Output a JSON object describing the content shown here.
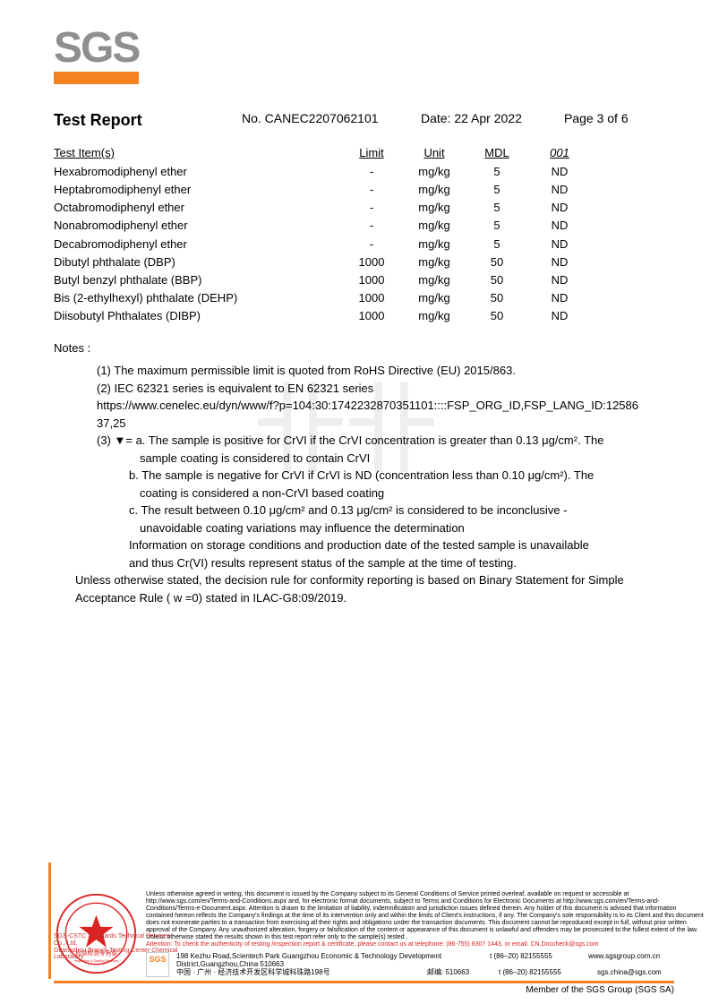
{
  "logo": "SGS",
  "header": {
    "title": "Test Report",
    "report_no": "No. CANEC2207062101",
    "date": "Date: 22 Apr 2022",
    "page": "Page 3 of 6"
  },
  "table": {
    "headers": {
      "item": "Test Item(s)",
      "limit": "Limit",
      "unit": "Unit",
      "mdl": "MDL",
      "r001": "001"
    },
    "rows": [
      {
        "item": "Hexabromodiphenyl ether",
        "limit": "-",
        "unit": "mg/kg",
        "mdl": "5",
        "r001": "ND"
      },
      {
        "item": "Heptabromodiphenyl ether",
        "limit": "-",
        "unit": "mg/kg",
        "mdl": "5",
        "r001": "ND"
      },
      {
        "item": "Octabromodiphenyl ether",
        "limit": "-",
        "unit": "mg/kg",
        "mdl": "5",
        "r001": "ND"
      },
      {
        "item": "Nonabromodiphenyl ether",
        "limit": "-",
        "unit": "mg/kg",
        "mdl": "5",
        "r001": "ND"
      },
      {
        "item": "Decabromodiphenyl ether",
        "limit": "-",
        "unit": "mg/kg",
        "mdl": "5",
        "r001": "ND"
      },
      {
        "item": "Dibutyl phthalate (DBP)",
        "limit": "1000",
        "unit": "mg/kg",
        "mdl": "50",
        "r001": "ND"
      },
      {
        "item": "Butyl benzyl phthalate (BBP)",
        "limit": "1000",
        "unit": "mg/kg",
        "mdl": "50",
        "r001": "ND"
      },
      {
        "item": "Bis (2-ethylhexyl) phthalate (DEHP)",
        "limit": "1000",
        "unit": "mg/kg",
        "mdl": "50",
        "r001": "ND"
      },
      {
        "item": "Diisobutyl Phthalates (DIBP)",
        "limit": "1000",
        "unit": "mg/kg",
        "mdl": "50",
        "r001": "ND"
      }
    ]
  },
  "notes": {
    "label": "Notes :",
    "n1": "(1) The maximum permissible limit is quoted from RoHS Directive (EU) 2015/863.",
    "n2a": "(2) IEC 62321 series is equivalent to EN 62321 series",
    "n2b": "https://www.cenelec.eu/dyn/www/f?p=104:30:1742232870351101::::FSP_ORG_ID,FSP_LANG_ID:12586 37,25",
    "n3a": "(3) ▼= a. The sample is positive for CrVI if the CrVI concentration is greater than 0.13 μg/cm². The",
    "n3a2": "sample coating is considered to contain CrVI",
    "n3b": "b. The sample is negative for CrVI if CrVI is ND (concentration less than 0.10 μg/cm²). The",
    "n3b2": "coating is considered a non-CrVI based coating",
    "n3c": "c. The result between 0.10 μg/cm² and 0.13 μg/cm² is considered to be inconclusive -",
    "n3c2": "unavoidable coating variations may influence the determination",
    "n3d": "Information on storage conditions and production date of the tested sample is unavailable",
    "n3d2": "and thus Cr(VI) results represent status of the sample at the time of testing.",
    "n4": "Unless otherwise stated, the decision rule for conformity reporting is based on Binary Statement for Simple Acceptance Rule ( w =0) stated in ILAC-G8:09/2019."
  },
  "footer": {
    "disclaimer": "Unless otherwise agreed in writing, this document is issued by the Company subject to its General Conditions of Service printed overleaf, available on request or accessible at http://www.sgs.com/en/Terms-and-Conditions.aspx and, for electronic format documents, subject to Terms and Conditions for Electronic Documents at http://www.sgs.com/en/Terms-and-Conditions/Terms-e-Document.aspx. Attention is drawn to the limitation of liability, indemnification and jurisdiction issues defined therein. Any holder of this document is advised that information contained hereon reflects the Company's findings at the time of its intervention only and within the limits of Client's instructions, if any. The Company's sole responsibility is to its Client and this document does not exonerate parties to a transaction from exercising all their rights and obligations under the transaction documents. This document cannot be reproduced except in full, without prior written approval of the Company. Any unauthorized alteration, forgery or falsification of the content or appearance of this document is unlawful and offenders may be prosecuted to the fullest extent of the law. Unless otherwise stated the results shown in this test report refer only to the sample(s) tested .",
    "attention": "Attention: To check the authenticity of testing /inspection report & certificate, please contact us at telephone: (86-755) 8307 1443, or email: CN.Doccheck@sgs.com",
    "addr1_en": "198 Kezhu Road,Scientech Park Guangzhou Economic & Technology Development District,Guangzhou,China 510663",
    "addr1_cn": "中国 · 广州 · 经济技术开发区科学城科珠路198号",
    "post": "邮编: 510663",
    "tel1": "t (86–20) 82155555",
    "tel2": "t (86–20) 82155555",
    "web": "www.sgsgroup.com.cn",
    "email": "sgs.china@sgs.com",
    "company1": "SGS-CSTC Standards Technical Services Co., Ltd.",
    "company2": "Guangzhou Branch Testing Center Chemical Laboratory",
    "stamp_text": "检验检测专用章",
    "stamp_text2": "Inspection & Testing Services",
    "member": "Member of the SGS Group (SGS SA)",
    "sgs_small": "SGS"
  }
}
